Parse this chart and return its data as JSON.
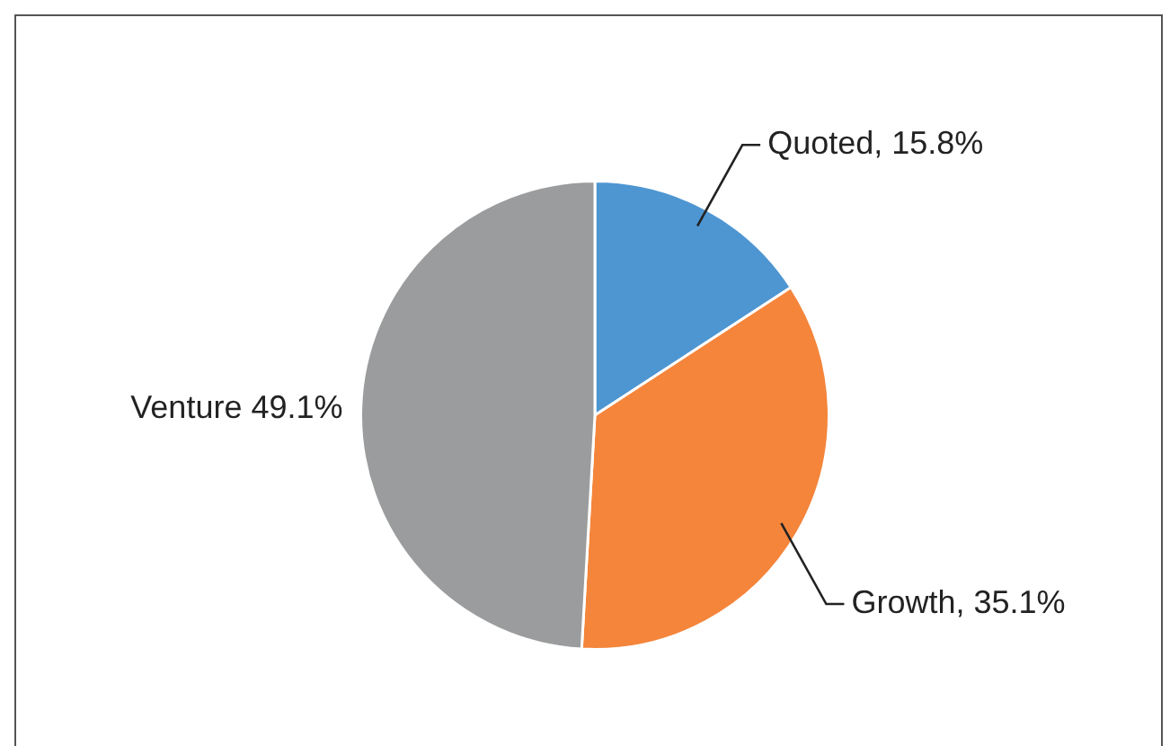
{
  "chart_data": {
    "type": "pie",
    "categories": [
      "Quoted, 15.8%",
      "Growth, 35.1%",
      "Venture 49.1%"
    ],
    "values": [
      15.8,
      35.1,
      49.1
    ],
    "colors": [
      "#4e96d2",
      "#f4853b",
      "#9a9c9d"
    ]
  }
}
